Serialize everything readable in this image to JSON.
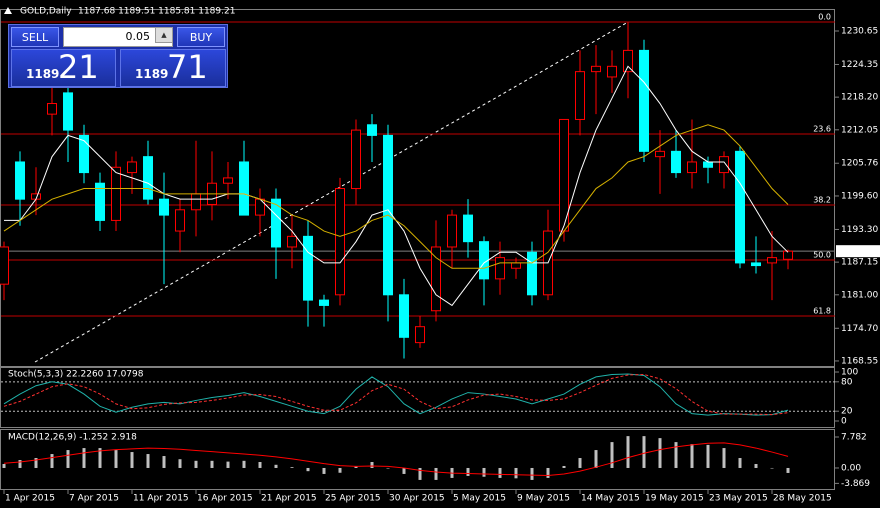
{
  "trade_panel": {
    "sell": "SELL",
    "lot": "0.05",
    "buy": "BUY",
    "bid_big": "1189",
    "bid_pips": "21",
    "ask_big": "1189",
    "ask_pips": "71"
  },
  "chart_data": [
    {
      "type": "candlestick",
      "title": "GOLD,Daily",
      "subtitle": "1187.68 1189.51 1185.81 1189.21",
      "categories": [
        "1 Apr 2015",
        null,
        null,
        null,
        "7 Apr 2015",
        null,
        null,
        null,
        "11 Apr 2015",
        null,
        null,
        null,
        "16 Apr 2015",
        null,
        null,
        null,
        "21 Apr 2015",
        null,
        null,
        null,
        "25 Apr 2015",
        null,
        null,
        null,
        "30 Apr 2015",
        null,
        null,
        null,
        "5 May 2015",
        null,
        null,
        null,
        "9 May 2015",
        null,
        null,
        null,
        "14 May 2015",
        null,
        null,
        null,
        "19 May 2015",
        null,
        null,
        null,
        "23 May 2015",
        null,
        null,
        null,
        "28 May 2015",
        null
      ],
      "open": [
        1183,
        1206,
        1199,
        1215,
        1219,
        1211,
        1202,
        1195,
        1204,
        1207,
        1199,
        1193,
        1197,
        1198,
        1202,
        1206,
        1196,
        1199,
        1190,
        1192,
        1180,
        1181,
        1201,
        1213,
        1211,
        1181,
        1172,
        1178,
        1190,
        1196,
        1191,
        1184,
        1186,
        1189,
        1181,
        1193,
        1214,
        1223,
        1222,
        1223,
        1227,
        1207,
        1208,
        1204,
        1206,
        1204,
        1208,
        1187,
        1187,
        1187.68
      ],
      "high": [
        1191,
        1208,
        1205,
        1221,
        1222,
        1213,
        1204,
        1208,
        1207,
        1210,
        1204,
        1199,
        1210,
        1208,
        1206,
        1210,
        1201,
        1201,
        1196,
        1195,
        1181,
        1203,
        1214,
        1215,
        1213,
        1184,
        1177,
        1195,
        1197,
        1199,
        1192,
        1191,
        1188,
        1191,
        1197,
        1214,
        1227,
        1228,
        1227,
        1232.3,
        1229,
        1212,
        1212,
        1214,
        1207,
        1208,
        1209,
        1192,
        1193,
        1189.51
      ],
      "low": [
        1180,
        1194,
        1196,
        1211,
        1206,
        1202,
        1193,
        1193,
        1200,
        1198,
        1183,
        1189,
        1192,
        1195,
        1199,
        1196,
        1192,
        1184,
        1186,
        1175,
        1175,
        1179,
        1198,
        1206,
        1176,
        1169,
        1171,
        1176,
        1186,
        1188,
        1179,
        1181,
        1184,
        1179,
        1180,
        1191,
        1211,
        1215,
        1219,
        1218,
        1206,
        1200,
        1203,
        1201,
        1202,
        1201,
        1186,
        1185,
        1180,
        1185.81
      ],
      "close": [
        1190,
        1199,
        1200,
        1217,
        1212,
        1204,
        1195,
        1205,
        1206,
        1199,
        1196,
        1197,
        1200,
        1202,
        1203,
        1196,
        1199,
        1190,
        1192,
        1180,
        1179,
        1201,
        1212,
        1211,
        1181,
        1173,
        1175,
        1190,
        1196,
        1191,
        1184,
        1188,
        1187,
        1181,
        1193,
        1214,
        1223,
        1224,
        1224,
        1227,
        1208,
        1208,
        1204,
        1206,
        1205,
        1207,
        1187,
        1186.5,
        1188,
        1189.21
      ],
      "up_color": "#ff0000",
      "down_color": "#00ffff",
      "series": [
        {
          "color": "#ffffff",
          "values": [
            1195,
            1195,
            1199,
            1207,
            1211,
            1210,
            1207,
            1204,
            1203,
            1202,
            1200,
            1199,
            1199,
            1199,
            1200,
            1200,
            1199,
            1196,
            1193,
            1189,
            1187,
            1187,
            1191,
            1196,
            1197,
            1193,
            1186,
            1181,
            1179,
            1183,
            1187,
            1189,
            1189,
            1187,
            1187,
            1194,
            1204,
            1212,
            1218,
            1224,
            1221,
            1217,
            1212,
            1208,
            1206,
            1206,
            1202,
            1197,
            1192,
            1189
          ]
        },
        {
          "color": "#d4b000",
          "values": [
            1193,
            1195,
            1197,
            1199,
            1200,
            1201,
            1201,
            1201,
            1201,
            1201,
            1200,
            1200,
            1200,
            1200,
            1200,
            1200,
            1199,
            1198,
            1196,
            1195,
            1193,
            1192,
            1193,
            1195,
            1196,
            1194,
            1191,
            1188,
            1186,
            1186,
            1186,
            1187,
            1187,
            1187,
            1189,
            1193,
            1197,
            1201,
            1203,
            1206,
            1207,
            1209,
            1211,
            1212,
            1213,
            1212,
            1209,
            1205,
            1201,
            1198
          ]
        }
      ],
      "fib_levels": [
        {
          "level": "0.0",
          "price": 1232.34
        },
        {
          "level": "23.6",
          "price": 1211.27
        },
        {
          "level": "38.2",
          "price": 1197.9
        },
        {
          "level": "50.0",
          "price": 1187.56
        },
        {
          "level": "61.8",
          "price": 1177.02
        }
      ],
      "fib_color": "#c00000",
      "current_price": 1189.21,
      "ylim": [
        1167.6,
        1234.6
      ],
      "yticks": [
        1230.65,
        1224.35,
        {
          "value": 1218.2,
          "label": "1218.20"
        },
        1212.05,
        1205.76,
        {
          "value": 1199.6,
          "label": "1199.60"
        },
        {
          "value": 1193.3,
          "label": "1193.30"
        },
        1187.15,
        {
          "value": 1181,
          "label": "1181.00"
        },
        {
          "value": 1174.7,
          "label": "1174.70"
        },
        1168.55
      ],
      "grid": false
    },
    {
      "type": "line",
      "title": "Stoch(5,3,3) 22.2260 17.0798",
      "series": [
        {
          "color": "#20b2aa",
          "dash": false,
          "values": [
            35,
            55,
            72,
            80,
            75,
            55,
            30,
            18,
            28,
            35,
            38,
            35,
            42,
            48,
            52,
            58,
            50,
            40,
            30,
            20,
            15,
            30,
            65,
            90,
            70,
            35,
            15,
            28,
            45,
            58,
            55,
            50,
            45,
            35,
            45,
            55,
            75,
            90,
            95,
            96,
            93,
            70,
            35,
            15,
            12,
            15,
            14,
            12,
            13,
            22.226
          ]
        },
        {
          "color": "#ff3030",
          "dash": true,
          "values": [
            30,
            40,
            55,
            70,
            76,
            70,
            55,
            35,
            25,
            27,
            34,
            37,
            38,
            42,
            47,
            53,
            54,
            50,
            40,
            30,
            22,
            22,
            37,
            62,
            75,
            65,
            40,
            25,
            29,
            43,
            53,
            55,
            50,
            43,
            42,
            45,
            58,
            73,
            87,
            94,
            95,
            86,
            66,
            40,
            20,
            14,
            14,
            14,
            13,
            17.0798
          ]
        }
      ],
      "levels": [
        20,
        80
      ],
      "ylim": [
        -10.2,
        108.2
      ],
      "yticks": [
        0,
        20,
        80,
        100
      ]
    },
    {
      "type": "combo",
      "title": "MACD(12,26,9) -1.252 2.918",
      "series": [
        {
          "type": "bar",
          "color": "#c0c0c0",
          "values": [
            1,
            2,
            2.5,
            3.5,
            4.5,
            5,
            5,
            4.5,
            4,
            3.5,
            3,
            2.2,
            1.8,
            1.8,
            1.6,
            1.8,
            1.5,
            0.8,
            0.2,
            -0.8,
            -1.5,
            -1.2,
            0.5,
            1.5,
            0,
            -1.5,
            -3,
            -3,
            -2.5,
            -2,
            -2.2,
            -2.5,
            -2.6,
            -3,
            -2.5,
            0.5,
            2.5,
            4.5,
            6.5,
            8,
            8,
            7.5,
            6.5,
            6,
            5.8,
            5,
            2.5,
            1,
            0,
            -1.252
          ]
        },
        {
          "type": "line",
          "color": "#ff0000",
          "values": [
            1.2,
            1.5,
            2,
            2.6,
            3.2,
            3.8,
            4.3,
            4.6,
            4.8,
            5,
            4.9,
            4.7,
            4.4,
            4.1,
            3.8,
            3.5,
            3.2,
            2.8,
            2.3,
            1.7,
            1.1,
            0.6,
            0.4,
            0.5,
            0.4,
            0,
            -0.6,
            -1,
            -1.3,
            -1.4,
            -1.5,
            -1.6,
            -1.7,
            -1.8,
            -1.9,
            -1.5,
            -0.8,
            0.2,
            1.3,
            2.6,
            3.7,
            4.6,
            5.3,
            5.8,
            6.2,
            6.3,
            5.8,
            5,
            4,
            2.918
          ]
        }
      ],
      "ylim": [
        -5.03,
        9.54
      ],
      "yticks": [
        7.782,
        {
          "value": 0,
          "label": "0.00"
        },
        -3.869
      ]
    }
  ]
}
